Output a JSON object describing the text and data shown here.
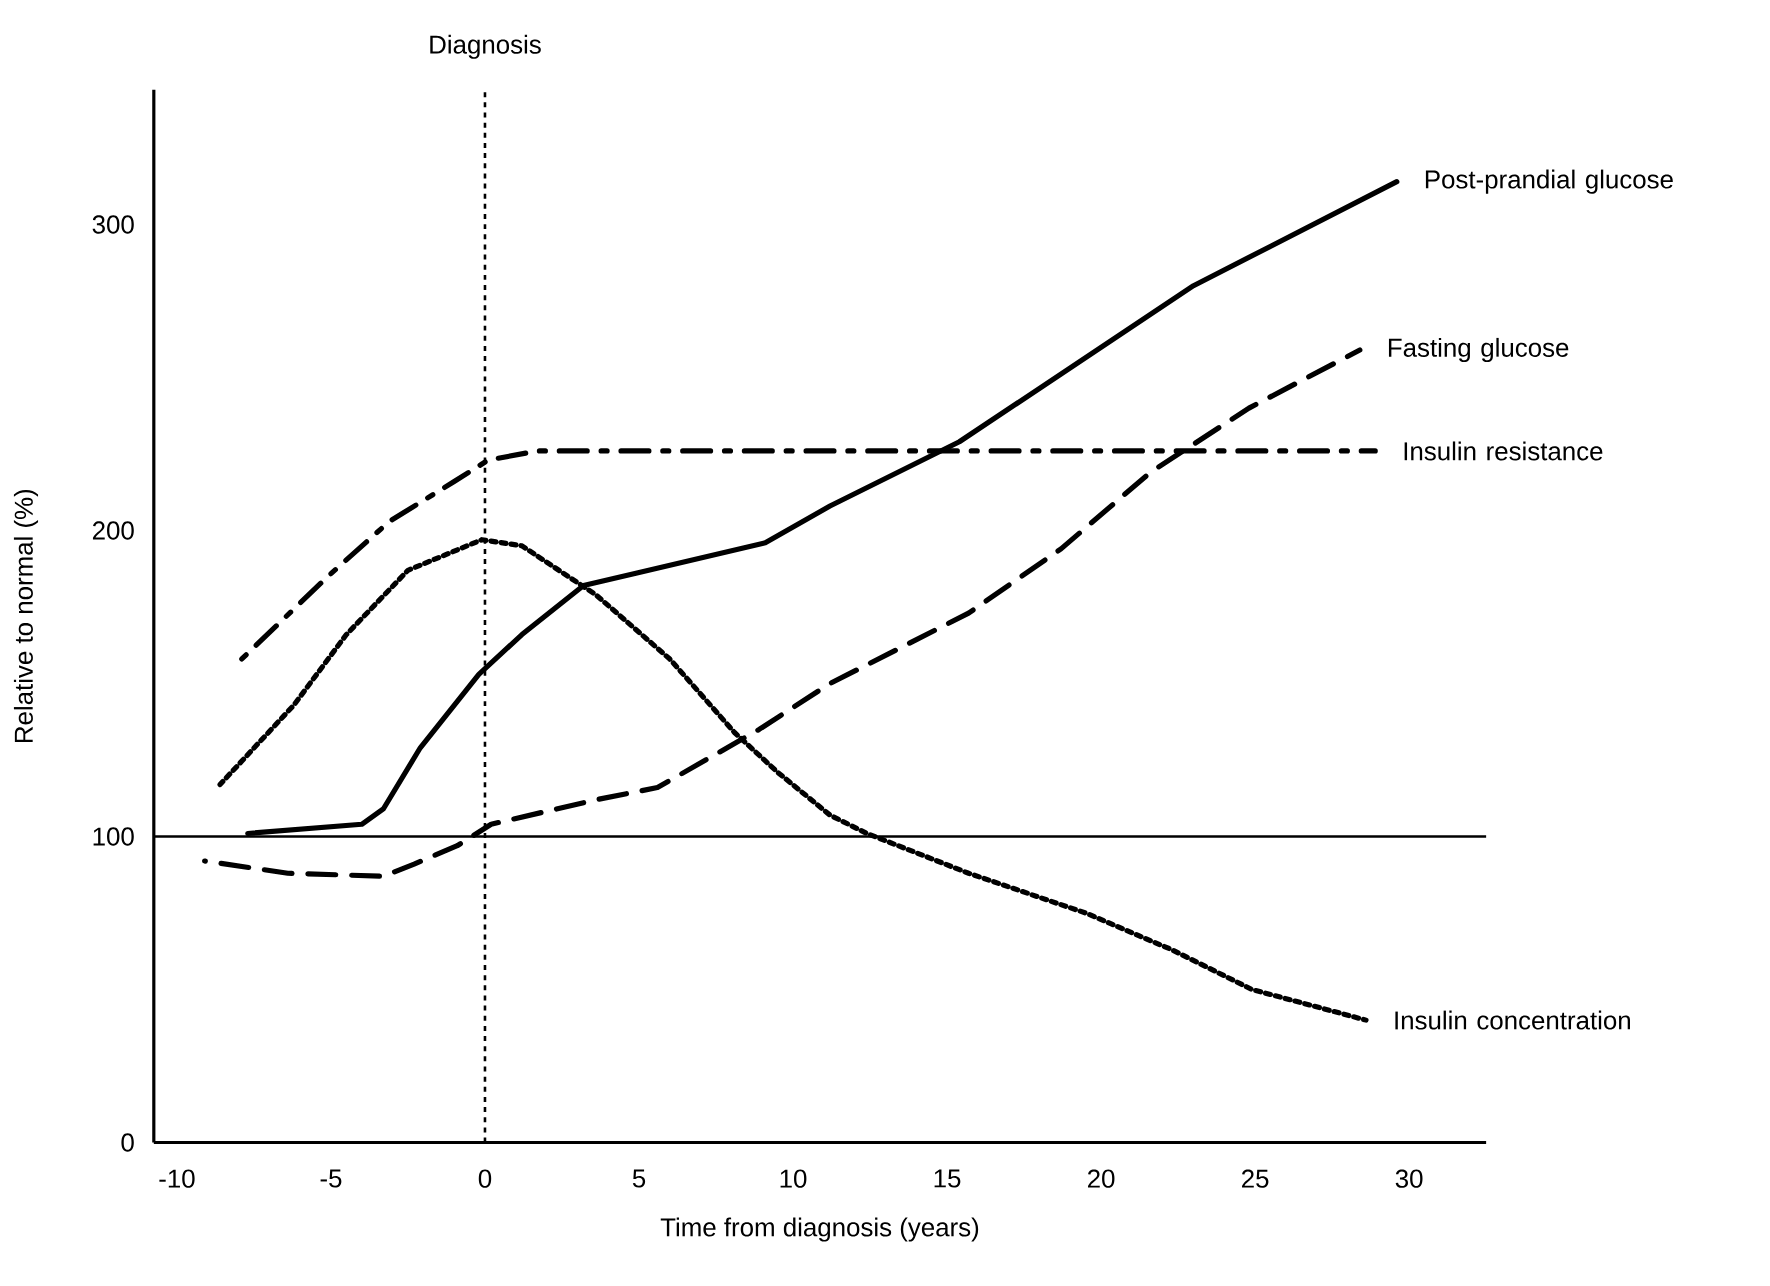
{
  "chart_data": {
    "type": "line",
    "xlabel": "Time from diagnosis (years)",
    "ylabel": "Relative to normal (%)",
    "xlim": [
      -10.75,
      32.5
    ],
    "ylim": [
      0,
      344
    ],
    "xticks": [
      -10,
      -5,
      0,
      5,
      10,
      15,
      20,
      25,
      30
    ],
    "yticks": [
      0,
      100,
      200,
      300
    ],
    "grid": false,
    "ref_lines": [
      {
        "axis": "y",
        "value": 100,
        "line_style": "solid",
        "color": "#000000"
      },
      {
        "axis": "x",
        "value": 0,
        "label": "Diagnosis",
        "line_style": "dotted",
        "color": "#000000"
      }
    ],
    "series": [
      {
        "name": "Post-prandial glucose",
        "color": "#000000",
        "line_style": "solid",
        "x": [
          -7.7,
          -4,
          -3.3,
          -2.1,
          -0.2,
          1.2,
          3.2,
          4.9,
          9.1,
          11.2,
          15.4,
          23,
          29.6
        ],
        "values": [
          101,
          104,
          109,
          129,
          153,
          166,
          182,
          186,
          196,
          208,
          229,
          280,
          314
        ]
      },
      {
        "name": "Fasting glucose",
        "color": "#000000",
        "line_style": "dashed",
        "x": [
          -9.1,
          -6.4,
          -3.3,
          -2.3,
          -0.9,
          0.2,
          3.6,
          5.6,
          8.9,
          11.2,
          15.7,
          18.7,
          21.6,
          24.8,
          28.4
        ],
        "values": [
          92,
          88,
          87,
          91,
          97,
          104,
          112,
          116,
          135,
          150,
          173,
          194,
          219,
          240,
          259
        ]
      },
      {
        "name": "Insulin resistance",
        "color": "#000000",
        "line_style": "dashdot",
        "x": [
          -8,
          -5.1,
          -3.1,
          -1,
          0.1,
          1.7,
          28.9
        ],
        "values": [
          157,
          185,
          203,
          216,
          223,
          226,
          226
        ]
      },
      {
        "name": "Insulin concentration",
        "color": "#000000",
        "line_style": "dotted",
        "x": [
          -8.6,
          -6.2,
          -4.5,
          -2.5,
          -0.1,
          1.2,
          3.6,
          6,
          8.1,
          9.5,
          11.2,
          12.4,
          15.7,
          19.5,
          22.3,
          24.9,
          28.6
        ],
        "values": [
          117,
          143,
          166,
          187,
          197,
          195,
          179,
          158,
          134,
          121,
          107,
          101,
          88,
          75,
          63,
          50,
          40
        ]
      }
    ]
  }
}
